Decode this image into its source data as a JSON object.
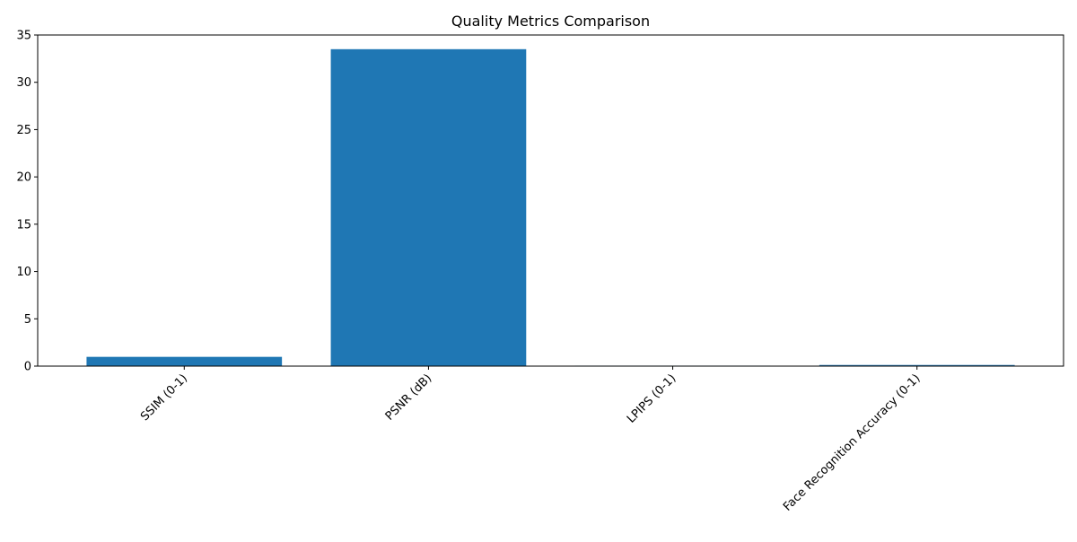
{
  "chart_data": {
    "type": "bar",
    "title": "Quality Metrics Comparison",
    "xlabel": "",
    "ylabel": "",
    "categories": [
      "SSIM (0-1)",
      "PSNR (dB)",
      "LPIPS (0-1)",
      "Face Recognition Accuracy (0-1)"
    ],
    "values": [
      0.98,
      33.5,
      0.05,
      0.12
    ],
    "ylim": [
      0,
      35
    ],
    "yticks": [
      0,
      5,
      10,
      15,
      20,
      25,
      30,
      35
    ],
    "ytick_labels": [
      "0",
      "5",
      "10",
      "15",
      "20",
      "25",
      "30",
      "35"
    ],
    "xtick_rotation_deg": 45,
    "bar_color": "#1f77b4",
    "grid": false,
    "legend": "none"
  }
}
